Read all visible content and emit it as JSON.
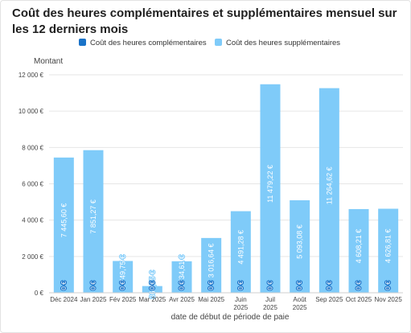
{
  "chart_data": {
    "type": "bar",
    "title": "Coût des heures complémentaires et supplémentaires mensuel sur les 12 derniers mois",
    "ylabel": "Montant",
    "xlabel": "date de début de période de paie",
    "ylim": [
      0,
      12000
    ],
    "yticks": [
      0,
      2000,
      4000,
      6000,
      8000,
      10000,
      12000
    ],
    "ytick_labels": [
      "0 €",
      "2 000 €",
      "4 000 €",
      "6 000 €",
      "8 000 €",
      "10 000 €",
      "12 000 €"
    ],
    "grid": true,
    "legend_position": "top",
    "categories": [
      [
        "Déc 2024"
      ],
      [
        "Jan 2025"
      ],
      [
        "Fév 2025"
      ],
      [
        "Mar 2025"
      ],
      [
        "Avr 2025"
      ],
      [
        "Mai 2025"
      ],
      [
        "Juin",
        "2025"
      ],
      [
        "Juil",
        "2025"
      ],
      [
        "Août",
        "2025"
      ],
      [
        "Sep 2025"
      ],
      [
        "Oct 2025"
      ],
      [
        "Nov 2025"
      ]
    ],
    "series": [
      {
        "name": "Coût des heures complémentaires",
        "color": "#1a73c8",
        "values": [
          0,
          0,
          0,
          0,
          0,
          0,
          0,
          0,
          0,
          0,
          0,
          0
        ],
        "labels": [
          "0 €",
          "0 €",
          "0 €",
          "0 €",
          "0 €",
          "0 €",
          "0 €",
          "0 €",
          "0 €",
          "0 €",
          "0 €",
          "0 €"
        ]
      },
      {
        "name": "Coût des heures supplémentaires",
        "color": "#7fcbf9",
        "values": [
          7445.6,
          7851.27,
          1749.75,
          369.75,
          1734.61,
          3016.64,
          4491.28,
          11479.22,
          5093.08,
          11264.62,
          4608.21,
          4626.81
        ],
        "labels": [
          "7 445,60 €",
          "7 851,27 €",
          "1 749,75 €",
          "369,75 €",
          "1 734,61 €",
          "3 016,64 €",
          "4 491,28 €",
          "11 479,22 €",
          "5 093,08 €",
          "11 264,62 €",
          "4 608,21 €",
          "4 626,81 €"
        ]
      }
    ]
  }
}
